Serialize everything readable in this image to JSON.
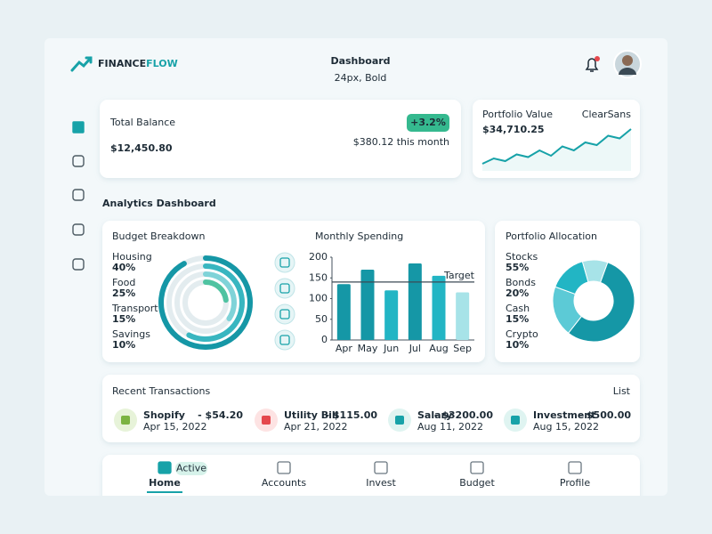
{
  "header": {
    "brand_part1": "FINANCE",
    "brand_part2": "FLOW",
    "title": "Dashboard",
    "subtitle": "24px, Bold"
  },
  "balance": {
    "label": "Total Balance",
    "amount": "$12,450.80",
    "change": "+3.2%",
    "change_note": "$380.12 this month"
  },
  "portfolio": {
    "label": "Portfolio Value",
    "tag": "ClearSans",
    "amount": "$34,710.25",
    "sparkline": {
      "type": "line",
      "color": "#17a2a8",
      "values": [
        12,
        16,
        14,
        19,
        17,
        22,
        18,
        25,
        22,
        28,
        26,
        33,
        31,
        38
      ],
      "ylim": [
        8,
        40
      ]
    }
  },
  "section_title": "Analytics Dashboard",
  "budget": {
    "type": "ring",
    "title": "Budget Breakdown",
    "categories": [
      "Housing",
      "Food",
      "Transport",
      "Savings"
    ],
    "values": [
      40,
      25,
      15,
      10
    ],
    "value_labels": [
      "40%",
      "25%",
      "15%",
      "10%"
    ],
    "colors": [
      "#1597a6",
      "#38b6c0",
      "#7fd3d8",
      "#4fc3a1"
    ]
  },
  "spending": {
    "type": "bar",
    "title": "Monthly Spending",
    "categories": [
      "Apr",
      "May",
      "Jun",
      "Jul",
      "Aug",
      "Sep"
    ],
    "values": [
      135,
      170,
      120,
      185,
      155,
      115
    ],
    "colors": [
      "#1597a6",
      "#1597a6",
      "#22b5c4",
      "#1597a6",
      "#22b5c4",
      "#a7e3e8"
    ],
    "ylim": [
      0,
      200
    ],
    "yticks": [
      0,
      50,
      100,
      150,
      200
    ],
    "target": 140,
    "target_label": "Target"
  },
  "allocation": {
    "type": "donut",
    "title": "Portfolio Allocation",
    "categories": [
      "Stocks",
      "Bonds",
      "Cash",
      "Crypto"
    ],
    "values": [
      55,
      20,
      15,
      10
    ],
    "value_labels": [
      "55%",
      "20%",
      "15%",
      "10%"
    ],
    "colors": [
      "#1597a6",
      "#5ccad6",
      "#22b5c4",
      "#a7e3e8"
    ]
  },
  "transactions": {
    "title": "Recent Transactions",
    "link": "List",
    "items": [
      {
        "name": "Shopify",
        "amount": "- $54.20",
        "date": "Apr 15, 2022"
      },
      {
        "name": "Utility Bill",
        "amount": "- $115.00",
        "date": "Apr 21, 2022"
      },
      {
        "name": "Salary",
        "amount": "- $3200.00",
        "date": "Aug 11, 2022"
      },
      {
        "name": "Investment",
        "amount": "- $500.00",
        "date": "Aug 15, 2022"
      }
    ]
  },
  "nav": {
    "badge": "Active",
    "items": [
      "Home",
      "Accounts",
      "Invest",
      "Budget",
      "Profile"
    ]
  }
}
